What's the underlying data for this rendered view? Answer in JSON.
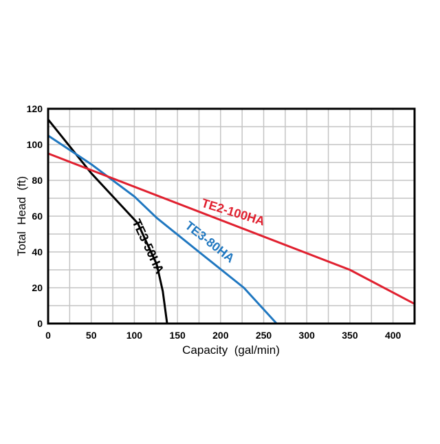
{
  "chart_data": {
    "type": "line",
    "title": "",
    "xlabel": "Capacity  (gal/min)",
    "ylabel": "Total  Head  (ft)",
    "xlim": [
      0,
      425
    ],
    "ylim": [
      0,
      120
    ],
    "xticks": [
      0,
      50,
      100,
      150,
      200,
      250,
      300,
      350,
      400
    ],
    "yticks": [
      0,
      20,
      40,
      60,
      80,
      100,
      120
    ],
    "grid": true,
    "grid_x_step": 25,
    "grid_y_step": 10,
    "legend": "inline labels on curves",
    "series": [
      {
        "name": "TE3-50HA",
        "color": "#000000",
        "x": [
          0,
          25,
          50,
          77,
          104,
          126,
          133,
          138
        ],
        "y": [
          114,
          99,
          84,
          70,
          56,
          33,
          18,
          0
        ]
      },
      {
        "name": "TE3-80HA",
        "color": "#1f77c0",
        "x": [
          0,
          50,
          100,
          126,
          175,
          227,
          265
        ],
        "y": [
          105,
          89,
          71,
          59,
          40,
          20,
          0
        ]
      },
      {
        "name": "TE2-100HA",
        "color": "#e0202f",
        "x": [
          0,
          350,
          425
        ],
        "y": [
          95,
          30,
          11
        ]
      }
    ]
  }
}
